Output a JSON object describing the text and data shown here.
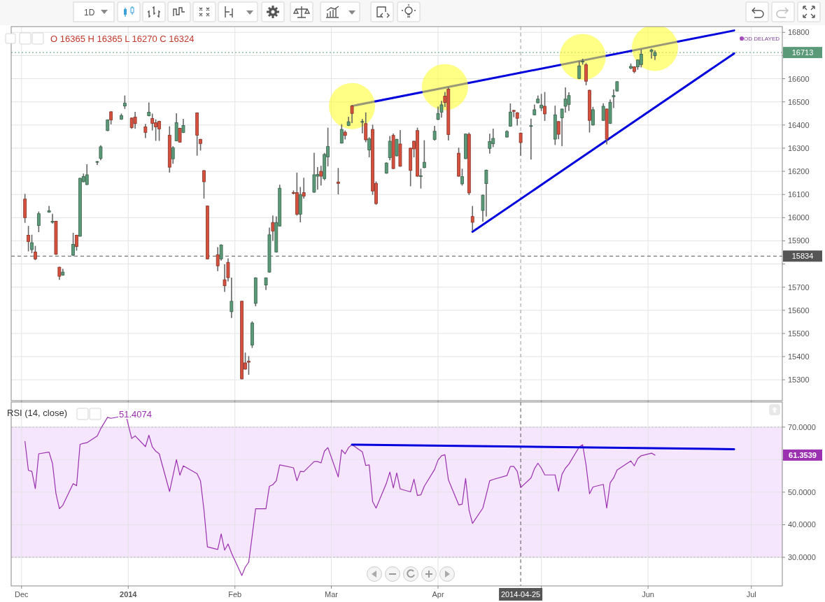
{
  "chart_data": [
    {
      "type": "candlestick",
      "subtitle": "O 16365 H 16365 L 16270 C 16324",
      "x": [
        "2013-12-02",
        "2013-12-03",
        "2013-12-04",
        "2013-12-05",
        "2013-12-06",
        "2013-12-09",
        "2013-12-10",
        "2013-12-11",
        "2013-12-12",
        "2013-12-13",
        "2013-12-16",
        "2013-12-17",
        "2013-12-18",
        "2013-12-19",
        "2013-12-20",
        "2013-12-23",
        "2013-12-24",
        "2013-12-26",
        "2013-12-27",
        "2013-12-30",
        "2013-12-31",
        "2014-01-02",
        "2014-01-03",
        "2014-01-06",
        "2014-01-07",
        "2014-01-08",
        "2014-01-09",
        "2014-01-10",
        "2014-01-13",
        "2014-01-14",
        "2014-01-15",
        "2014-01-16",
        "2014-01-17",
        "2014-01-21",
        "2014-01-22",
        "2014-01-23",
        "2014-01-24",
        "2014-01-27",
        "2014-01-28",
        "2014-01-29",
        "2014-01-30",
        "2014-01-31",
        "2014-02-03",
        "2014-02-04",
        "2014-02-05",
        "2014-02-06",
        "2014-02-07",
        "2014-02-10",
        "2014-02-11",
        "2014-02-12",
        "2014-02-13",
        "2014-02-14",
        "2014-02-18",
        "2014-02-19",
        "2014-02-20",
        "2014-02-21",
        "2014-02-24",
        "2014-02-25",
        "2014-02-26",
        "2014-02-27",
        "2014-02-28",
        "2014-03-03",
        "2014-03-04",
        "2014-03-05",
        "2014-03-06",
        "2014-03-07",
        "2014-03-10",
        "2014-03-11",
        "2014-03-12",
        "2014-03-13",
        "2014-03-14",
        "2014-03-17",
        "2014-03-18",
        "2014-03-19",
        "2014-03-20",
        "2014-03-21",
        "2014-03-24",
        "2014-03-25",
        "2014-03-26",
        "2014-03-27",
        "2014-03-28",
        "2014-03-31",
        "2014-04-01",
        "2014-04-02",
        "2014-04-03",
        "2014-04-04",
        "2014-04-07",
        "2014-04-08",
        "2014-04-09",
        "2014-04-10",
        "2014-04-11",
        "2014-04-14",
        "2014-04-15",
        "2014-04-16",
        "2014-04-17",
        "2014-04-21",
        "2014-04-22",
        "2014-04-23",
        "2014-04-24",
        "2014-04-25",
        "2014-04-28",
        "2014-04-29",
        "2014-04-30",
        "2014-05-01",
        "2014-05-02",
        "2014-05-05",
        "2014-05-06",
        "2014-05-07",
        "2014-05-08",
        "2014-05-09",
        "2014-05-12",
        "2014-05-13",
        "2014-05-14",
        "2014-05-15",
        "2014-05-16",
        "2014-05-19",
        "2014-05-20",
        "2014-05-21",
        "2014-05-22",
        "2014-05-23",
        "2014-05-27",
        "2014-05-28",
        "2014-05-29",
        "2014-05-30",
        "2014-06-02",
        "2014-06-03"
      ],
      "ohlc": [
        [
          16080,
          16100,
          15980,
          16000
        ],
        [
          15924,
          15962,
          15857,
          15897
        ],
        [
          15862,
          15924,
          15849,
          15892
        ],
        [
          15852,
          15876,
          15819,
          15822
        ],
        [
          15966,
          16024,
          15940,
          16017
        ],
        [
          16024,
          16048,
          16024,
          16030
        ],
        [
          15980,
          16014,
          15977,
          15984
        ],
        [
          15984,
          15984,
          15842,
          15842
        ],
        [
          15786,
          15786,
          15734,
          15747
        ],
        [
          15752,
          15777,
          15752,
          15765
        ],
        [
          15838,
          15932,
          15836,
          15885
        ],
        [
          15924,
          15924,
          15860,
          15875
        ],
        [
          15920,
          16170,
          15920,
          16170
        ],
        [
          16155,
          16188,
          16155,
          16178
        ],
        [
          16143,
          16228,
          16143,
          16185
        ],
        [
          16239,
          16242,
          16230,
          16242
        ],
        [
          16256,
          16310,
          16250,
          16306
        ],
        [
          16376,
          16422,
          16376,
          16422
        ],
        [
          16457,
          16457,
          16405,
          16422
        ],
        [
          16425,
          16447,
          16425,
          16441
        ],
        [
          16482,
          16525,
          16472,
          16494
        ],
        [
          16430,
          16430,
          16386,
          16389
        ],
        [
          16434,
          16454,
          16387,
          16406
        ],
        [
          16392,
          16402,
          16346,
          16368
        ],
        [
          16440,
          16495,
          16440,
          16455
        ],
        [
          16428,
          16447,
          16379,
          16407
        ],
        [
          16410,
          16422,
          16334,
          16392
        ],
        [
          16416,
          16416,
          16334,
          16383
        ],
        [
          16356,
          16392,
          16197,
          16218
        ],
        [
          16254,
          16306,
          16235,
          16302
        ],
        [
          16332,
          16448,
          16332,
          16410
        ],
        [
          16386,
          16386,
          16326,
          16326
        ],
        [
          16368,
          16424,
          16368,
          16398
        ],
        [
          16452,
          16452,
          16270,
          16356
        ],
        [
          16338,
          16338,
          16292,
          16320
        ],
        [
          16203,
          16203,
          16085,
          16155
        ],
        [
          16050,
          16050,
          15822,
          15822
        ],
        [
          15840,
          15870,
          15772,
          15792
        ],
        [
          15822,
          15882,
          15817,
          15882
        ],
        [
          15732,
          15796,
          15682,
          15706
        ],
        [
          15807,
          15822,
          15727,
          15741
        ],
        [
          15594,
          15739,
          15569,
          15639
        ],
        [
          15639,
          15639,
          15304,
          15304
        ],
        [
          15373,
          15415,
          15346,
          15346
        ],
        [
          15380,
          15400,
          15324,
          15376
        ],
        [
          15450,
          15550,
          15440,
          15545
        ],
        [
          15630,
          15740,
          15620,
          15740
        ],
        [
          15709,
          15740,
          15690,
          15740
        ],
        [
          15765,
          15955,
          15765,
          15926
        ],
        [
          15979,
          16007,
          15902,
          15942
        ],
        [
          15852,
          16003,
          15852,
          15979
        ],
        [
          15964,
          16140,
          15964,
          16127
        ],
        [
          16108,
          16115,
          16103,
          16106
        ],
        [
          16108,
          16192,
          16011,
          16015
        ],
        [
          16015,
          16130,
          15982,
          16100
        ],
        [
          16108,
          16170,
          16085,
          16093
        ],
        [
          16110,
          16278,
          16110,
          16185
        ],
        [
          16179,
          16216,
          16123,
          16187
        ],
        [
          16200,
          16222,
          16141,
          16179
        ],
        [
          16169,
          16277,
          16164,
          16273
        ],
        [
          16262,
          16386,
          16224,
          16307
        ],
        [
          16154,
          16212,
          16103,
          16148
        ],
        [
          16322,
          16401,
          16322,
          16381
        ],
        [
          16369,
          16374,
          16340,
          16355
        ],
        [
          16398,
          16433,
          16398,
          16414
        ],
        [
          16482,
          16484,
          16411,
          16450
        ],
        [
          16414,
          16423,
          16366,
          16415
        ],
        [
          16406,
          16452,
          16328,
          16336
        ],
        [
          16292,
          16345,
          16263,
          16340
        ],
        [
          16381,
          16399,
          16101,
          16115
        ],
        [
          16148,
          16154,
          16058,
          16061
        ],
        [
          16192,
          16236,
          16192,
          16236
        ],
        [
          16259,
          16350,
          16250,
          16330
        ],
        [
          16355,
          16361,
          16212,
          16212
        ],
        [
          16267,
          16338,
          16267,
          16338
        ],
        [
          16318,
          16376,
          16222,
          16222
        ],
        [
          16300,
          16300,
          16138,
          16204
        ],
        [
          16330,
          16330,
          16263,
          16297
        ],
        [
          16376,
          16386,
          16179,
          16179
        ],
        [
          16180,
          16209,
          16128,
          16181
        ],
        [
          16216,
          16332,
          16216,
          16239
        ],
        [
          16338,
          16394,
          16335,
          16373
        ],
        [
          16424,
          16477,
          16424,
          16450
        ],
        [
          16455,
          16502,
          16434,
          16487
        ],
        [
          16525,
          16540,
          16480,
          16497
        ],
        [
          16555,
          16560,
          16336,
          16359
        ],
        [
          16278,
          16300,
          16179,
          16179
        ],
        [
          16146,
          16209,
          16141,
          16177
        ],
        [
          16255,
          16361,
          16255,
          16361
        ],
        [
          16360,
          16365,
          16100,
          16107
        ],
        [
          16005,
          16048,
          15945,
          15980
        ],
        [
          16031,
          16097,
          15985,
          16097
        ],
        [
          16147,
          16205,
          16007,
          16205
        ],
        [
          16299,
          16360,
          16279,
          16329
        ],
        [
          16319,
          16382,
          16307,
          16342
        ],
        [
          16348,
          16375,
          16348,
          16372
        ],
        [
          16395,
          16491,
          16395,
          16456
        ],
        [
          16463,
          16463,
          16436,
          16459
        ],
        [
          16453,
          16453,
          16400,
          16429
        ],
        [
          16365,
          16365,
          16270,
          16324
        ],
        [
          16395,
          16425,
          16253,
          16397
        ],
        [
          16444,
          16486,
          16444,
          16466
        ],
        [
          16496,
          16525,
          16496,
          16512
        ],
        [
          16474,
          16532,
          16463,
          16486
        ],
        [
          16481,
          16540,
          16420,
          16448
        ],
        [
          16339,
          16481,
          16316,
          16444
        ],
        [
          16415,
          16415,
          16341,
          16360
        ],
        [
          16431,
          16469,
          16311,
          16469
        ],
        [
          16481,
          16560,
          16456,
          16512
        ],
        [
          16489,
          16539,
          16463,
          16527
        ],
        [
          16601,
          16673,
          16601,
          16655
        ],
        [
          16673,
          16684,
          16663,
          16675
        ],
        [
          16660,
          16665,
          16574,
          16589
        ],
        [
          16550,
          16550,
          16370,
          16420
        ],
        [
          16400,
          16476,
          16400,
          16466
        ],
        [
          16420,
          16491,
          16420,
          16481
        ],
        [
          16469,
          16469,
          16319,
          16339
        ],
        [
          16407,
          16508,
          16407,
          16498
        ],
        [
          16522,
          16552,
          16476,
          16527
        ],
        [
          16547,
          16587,
          16547,
          16587
        ],
        [
          16646,
          16663,
          16643,
          16653
        ],
        [
          16651,
          16651,
          16626,
          16631
        ],
        [
          16651,
          16681,
          16641,
          16681
        ],
        [
          16661,
          16724,
          16651,
          16706
        ],
        [
          16717,
          16727,
          16689,
          16724
        ],
        [
          16699,
          16720,
          16683,
          16713
        ]
      ],
      "colors": [
        "#d6503e",
        "#d6503e",
        "#5b9a78",
        "#d6503e",
        "#5b9a78",
        "#5b9a78",
        "#5b9a78",
        "#d6503e",
        "#d6503e",
        "#5b9a78",
        "#5b9a78",
        "#d6503e",
        "#5b9a78",
        "#5b9a78",
        "#5b9a78",
        "#5b9a78",
        "#5b9a78",
        "#5b9a78",
        "#d6503e",
        "#5b9a78",
        "#5b9a78",
        "#d6503e",
        "#d6503e",
        "#d6503e",
        "#5b9a78",
        "#d6503e",
        "#d6503e",
        "#d6503e",
        "#d6503e",
        "#5b9a78",
        "#5b9a78",
        "#d6503e",
        "#5b9a78",
        "#d6503e",
        "#d6503e",
        "#d6503e",
        "#d6503e",
        "#d6503e",
        "#5b9a78",
        "#d6503e",
        "#d6503e",
        "#5b9a78",
        "#d6503e",
        "#d6503e",
        "#d6503e",
        "#5b9a78",
        "#5b9a78",
        "#5b9a78",
        "#5b9a78",
        "#d6503e",
        "#5b9a78",
        "#5b9a78",
        "#d6503e",
        "#d6503e",
        "#5b9a78",
        "#d6503e",
        "#5b9a78",
        "#5b9a78",
        "#d6503e",
        "#5b9a78",
        "#5b9a78",
        "#d6503e",
        "#5b9a78",
        "#d6503e",
        "#5b9a78",
        "#d6503e",
        "#5b9a78",
        "#d6503e",
        "#5b9a78",
        "#d6503e",
        "#d6503e",
        "#5b9a78",
        "#5b9a78",
        "#d6503e",
        "#5b9a78",
        "#d6503e",
        "#d6503e",
        "#d6503e",
        "#d6503e",
        "#5b9a78",
        "#5b9a78",
        "#5b9a78",
        "#5b9a78",
        "#5b9a78",
        "#d6503e",
        "#d6503e",
        "#d6503e",
        "#5b9a78",
        "#5b9a78",
        "#d6503e",
        "#d6503e",
        "#5b9a78",
        "#5b9a78",
        "#5b9a78",
        "#5b9a78",
        "#5b9a78",
        "#5b9a78",
        "#d6503e",
        "#d6503e",
        "#d6503e",
        "#5b9a78",
        "#5b9a78",
        "#5b9a78",
        "#5b9a78",
        "#d6503e",
        "#5b9a78",
        "#d6503e",
        "#5b9a78",
        "#5b9a78",
        "#5b9a78",
        "#5b9a78",
        "#5b9a78",
        "#d6503e",
        "#d6503e",
        "#5b9a78",
        "#5b9a78",
        "#d6503e",
        "#5b9a78",
        "#5b9a78",
        "#5b9a78",
        "#5b9a78",
        "#d6503e",
        "#5b9a78",
        "#5b9a78",
        "#5b9a78",
        "#5b9a78"
      ],
      "series": [
        {
          "type": "line",
          "color": "#0000dd",
          "x": [
            "2014-03-07",
            "2014-06-26"
          ],
          "values": [
            16482,
            16808
          ]
        },
        {
          "type": "line",
          "color": "#0000dd",
          "x": [
            "2014-04-11",
            "2014-06-26"
          ],
          "values": [
            15939,
            16709
          ]
        },
        {
          "type": "scatter",
          "color": "#ffff33",
          "marker": "circle",
          "x": [
            "2014-03-07",
            "2014-04-03",
            "2014-05-13",
            "2014-06-03"
          ],
          "values": [
            16482,
            16564,
            16694,
            16733
          ]
        }
      ],
      "xlim": [
        "2013-11-28",
        "2014-07-10"
      ],
      "xticks": [
        {
          "value": "2013-12-01",
          "label": null
        },
        {
          "value": "2014-01-01",
          "label": null
        },
        {
          "value": "2014-02-01",
          "label": null
        },
        {
          "value": "2014-03-01",
          "label": null
        },
        {
          "value": "2014-04-01",
          "label": null
        },
        {
          "value": "2014-05-01",
          "label": null
        },
        {
          "value": "2014-06-01",
          "label": null
        },
        {
          "value": "2014-07-01",
          "label": null
        }
      ],
      "ylim": [
        15210,
        16825
      ],
      "yticks": [
        15300,
        15400,
        15500,
        15600,
        15700,
        {
          "value": 15800,
          "label": null
        },
        15900,
        16000,
        16100,
        16200,
        16300,
        16400,
        16500,
        16600,
        {
          "value": 16700,
          "label": null
        },
        16800
      ],
      "ref_lines": [
        {
          "axis": "y",
          "value": 16713,
          "label": "16713",
          "color": "#5b9a78",
          "line_style": "dotted"
        },
        {
          "axis": "y",
          "value": 15834,
          "label": "15834",
          "color": "#555555",
          "line_style": "dashed"
        },
        {
          "axis": "x",
          "value": "2014-04-25",
          "color": "#999999",
          "line_style": "dashed"
        }
      ],
      "annotations": [
        "1D",
        "EOD DELAYED"
      ],
      "grid": true,
      "tick_labels": "y"
    },
    {
      "type": "line",
      "title": "RSI (14, close)",
      "subtitle": "51.4074",
      "x": [
        "2013-12-02",
        "2013-12-03",
        "2013-12-04",
        "2013-12-05",
        "2013-12-06",
        "2013-12-09",
        "2013-12-10",
        "2013-12-11",
        "2013-12-12",
        "2013-12-13",
        "2013-12-16",
        "2013-12-17",
        "2013-12-18",
        "2013-12-19",
        "2013-12-20",
        "2013-12-23",
        "2013-12-24",
        "2013-12-26",
        "2013-12-27",
        "2013-12-30",
        "2013-12-31",
        "2014-01-02",
        "2014-01-03",
        "2014-01-06",
        "2014-01-07",
        "2014-01-08",
        "2014-01-09",
        "2014-01-10",
        "2014-01-13",
        "2014-01-14",
        "2014-01-15",
        "2014-01-16",
        "2014-01-17",
        "2014-01-21",
        "2014-01-22",
        "2014-01-23",
        "2014-01-24",
        "2014-01-27",
        "2014-01-28",
        "2014-01-29",
        "2014-01-30",
        "2014-01-31",
        "2014-02-03",
        "2014-02-04",
        "2014-02-05",
        "2014-02-06",
        "2014-02-07",
        "2014-02-10",
        "2014-02-11",
        "2014-02-12",
        "2014-02-13",
        "2014-02-14",
        "2014-02-18",
        "2014-02-19",
        "2014-02-20",
        "2014-02-21",
        "2014-02-24",
        "2014-02-25",
        "2014-02-26",
        "2014-02-27",
        "2014-02-28",
        "2014-03-03",
        "2014-03-04",
        "2014-03-05",
        "2014-03-06",
        "2014-03-07",
        "2014-03-10",
        "2014-03-11",
        "2014-03-12",
        "2014-03-13",
        "2014-03-14",
        "2014-03-17",
        "2014-03-18",
        "2014-03-19",
        "2014-03-20",
        "2014-03-21",
        "2014-03-24",
        "2014-03-25",
        "2014-03-26",
        "2014-03-27",
        "2014-03-28",
        "2014-03-31",
        "2014-04-01",
        "2014-04-02",
        "2014-04-03",
        "2014-04-04",
        "2014-04-07",
        "2014-04-08",
        "2014-04-09",
        "2014-04-10",
        "2014-04-11",
        "2014-04-14",
        "2014-04-15",
        "2014-04-16",
        "2014-04-17",
        "2014-04-21",
        "2014-04-22",
        "2014-04-23",
        "2014-04-24",
        "2014-04-25",
        "2014-04-28",
        "2014-04-29",
        "2014-04-30",
        "2014-05-01",
        "2014-05-02",
        "2014-05-05",
        "2014-05-06",
        "2014-05-07",
        "2014-05-08",
        "2014-05-09",
        "2014-05-12",
        "2014-05-13",
        "2014-05-14",
        "2014-05-15",
        "2014-05-16",
        "2014-05-19",
        "2014-05-20",
        "2014-05-21",
        "2014-05-22",
        "2014-05-23",
        "2014-05-27",
        "2014-05-28",
        "2014-05-29",
        "2014-05-30",
        "2014-06-02",
        "2014-06-03"
      ],
      "series": [
        {
          "color": "#9b30b0",
          "values": [
            65.6,
            56.7,
            56.4,
            51.1,
            61.8,
            62.3,
            58.8,
            49.6,
            44.9,
            46.0,
            52.6,
            52.0,
            64.7,
            65.0,
            65.2,
            67.3,
            69.5,
            73.0,
            72.7,
            73.3,
            75.1,
            66.5,
            67.3,
            64.0,
            67.5,
            63.9,
            62.6,
            61.8,
            50.2,
            55.1,
            60.0,
            55.2,
            58.1,
            55.7,
            53.4,
            44.5,
            33.2,
            32.4,
            37.2,
            32.2,
            34.1,
            31.3,
            24.4,
            27.0,
            28.5,
            36.6,
            44.9,
            44.9,
            51.8,
            52.3,
            53.5,
            58.4,
            57.5,
            53.5,
            56.4,
            56.3,
            59.4,
            59.4,
            59.0,
            62.6,
            63.7,
            54.7,
            63.0,
            61.8,
            63.7,
            64.6,
            62.4,
            58.2,
            58.4,
            47.1,
            45.1,
            52.8,
            56.2,
            51.3,
            55.9,
            51.0,
            50.1,
            54.0,
            49.0,
            49.2,
            51.8,
            57.0,
            59.9,
            61.2,
            61.5,
            53.8,
            46.1,
            46.3,
            54.2,
            44.5,
            40.4,
            45.1,
            49.2,
            53.5,
            53.9,
            55.1,
            57.9,
            57.9,
            56.4,
            51.4,
            54.4,
            57.2,
            58.9,
            57.4,
            55.3,
            55.3,
            50.3,
            55.5,
            57.4,
            58.6,
            63.9,
            64.6,
            58.3,
            49.5,
            51.6,
            52.4,
            45.1,
            52.9,
            54.4,
            56.8,
            59.6,
            58.1,
            60.3,
            61.2,
            62.0,
            61.4
          ]
        },
        {
          "type": "line",
          "color": "#0000dd",
          "x": [
            "2014-03-07",
            "2014-06-26"
          ],
          "values": [
            64.6,
            63.2
          ]
        }
      ],
      "xlim": [
        "2013-11-28",
        "2014-07-10"
      ],
      "xticks": [
        {
          "value": "2013-12-01",
          "label": "Dec"
        },
        {
          "value": "2014-01-01",
          "label": "2014"
        },
        {
          "value": "2014-02-01",
          "label": "Feb"
        },
        {
          "value": "2014-03-01",
          "label": "Mar"
        },
        {
          "value": "2014-04-01",
          "label": "Apr"
        },
        {
          "value": "2014-05-01",
          "label": null
        },
        {
          "value": "2014-06-01",
          "label": "Jun"
        },
        {
          "value": "2014-07-01",
          "label": "Jul"
        }
      ],
      "ylim": [
        21.2,
        77.7
      ],
      "yticks": [
        {
          "value": 30,
          "label": "30.0000"
        },
        {
          "value": 40,
          "label": "40.0000"
        },
        {
          "value": 50,
          "label": "50.0000"
        },
        {
          "value": 60,
          "label": null
        },
        {
          "value": 70,
          "label": "70.0000"
        }
      ],
      "bands": [
        {
          "axis": "y",
          "from": 30,
          "to": 70,
          "color": "#f5e6fd"
        }
      ],
      "ref_lines": [
        {
          "axis": "x",
          "value": "2014-04-25",
          "label": "2014-04-25",
          "color": "#555555",
          "line_style": "dashed"
        }
      ],
      "annotations": [
        "61.3539"
      ],
      "grid": true
    }
  ]
}
